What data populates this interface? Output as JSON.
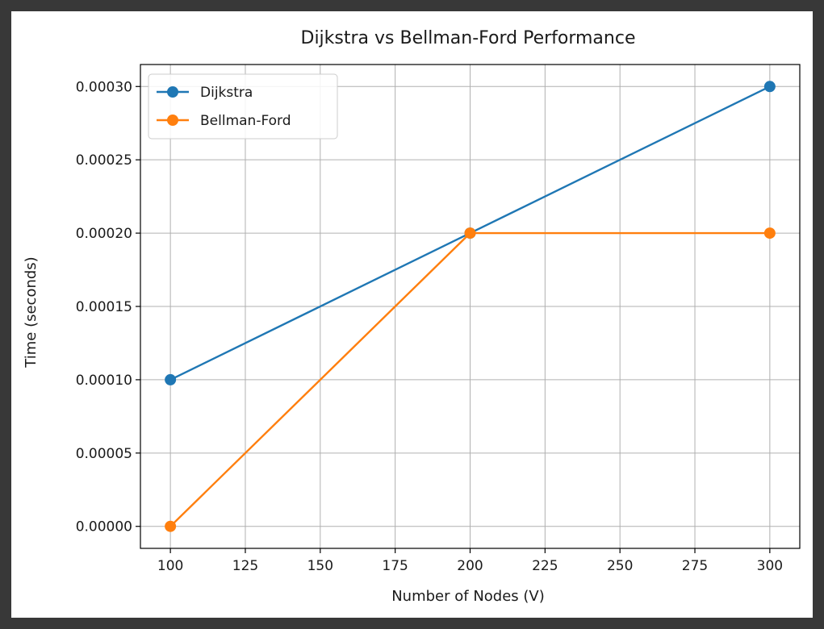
{
  "chart_data": {
    "type": "line",
    "title": "Dijkstra vs Bellman-Ford Performance",
    "xlabel": "Number of Nodes (V)",
    "ylabel": "Time (seconds)",
    "x": [
      100,
      200,
      300
    ],
    "series": [
      {
        "name": "Dijkstra",
        "color": "#1f77b4",
        "values": [
          0.0001,
          0.0002,
          0.0003
        ]
      },
      {
        "name": "Bellman-Ford",
        "color": "#ff7f0e",
        "values": [
          0.0,
          0.0002,
          0.0002
        ]
      }
    ],
    "xlim": [
      90,
      310
    ],
    "ylim": [
      -1.5e-05,
      0.000315
    ],
    "xticks": [
      "100",
      "125",
      "150",
      "175",
      "200",
      "225",
      "250",
      "275",
      "300"
    ],
    "yticks": [
      "0.00000",
      "0.00005",
      "0.00010",
      "0.00015",
      "0.00020",
      "0.00025",
      "0.00030"
    ],
    "grid": true,
    "legend_position": "upper-left"
  }
}
